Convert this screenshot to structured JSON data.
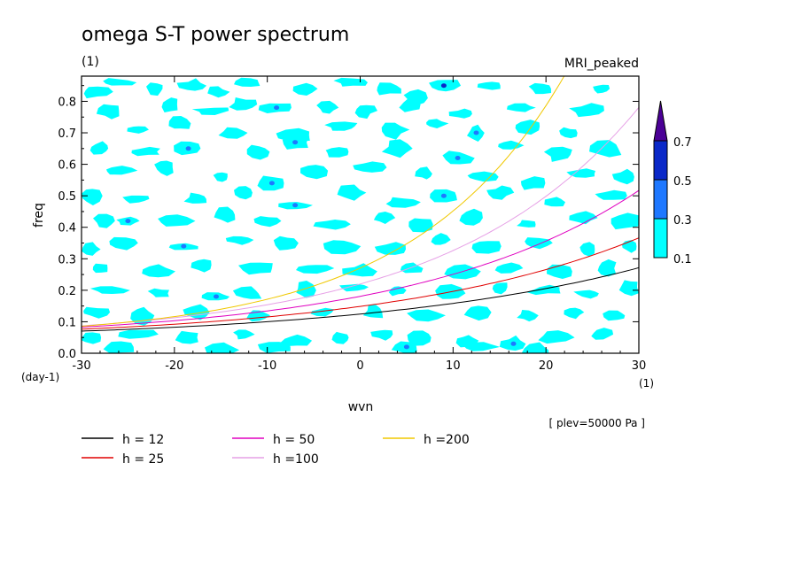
{
  "chart_data": {
    "type": "contour",
    "title": "omega S-T power spectrum",
    "subtitle_left": "(1)",
    "subtitle_right": "MRI_peaked",
    "xlabel": "wvn",
    "ylabel": "freq",
    "x_unit": "(1)",
    "y_unit": "(day-1)",
    "xlim": [
      -30,
      30
    ],
    "ylim": [
      0,
      0.88
    ],
    "x_ticks": [
      -30,
      -20,
      -10,
      0,
      10,
      20,
      30
    ],
    "x_tick_labels": [
      "-30",
      "-20",
      "-10",
      "0",
      "10",
      "20",
      "30"
    ],
    "y_ticks": [
      0,
      0.1,
      0.2,
      0.3,
      0.4,
      0.5,
      0.6,
      0.7,
      0.8
    ],
    "y_tick_labels": [
      "0.0",
      "0.1",
      "0.2",
      "0.3",
      "0.4",
      "0.5",
      "0.6",
      "0.7",
      "0.8"
    ],
    "annotation": "[ plev=50000 Pa ]",
    "colorbar": {
      "levels": [
        "0.1",
        "0.3",
        "0.5",
        "0.7"
      ],
      "colors": [
        "#00ffff",
        "#1e78ff",
        "#0a28c8",
        "#4b0096"
      ]
    },
    "curves": [
      {
        "name": "h = 12",
        "h": 12,
        "color": "#000000"
      },
      {
        "name": "h = 25",
        "h": 25,
        "color": "#e00000"
      },
      {
        "name": "h = 50",
        "h": 50,
        "color": "#e000c0"
      },
      {
        "name": "h =100",
        "h": 100,
        "color": "#e6a0e6"
      },
      {
        "name": "h =200",
        "h": 200,
        "color": "#f0c800"
      }
    ],
    "blobs": [
      [
        -28.5,
        0.83,
        0.1
      ],
      [
        -26,
        0.86,
        0.1
      ],
      [
        -22,
        0.84,
        0.1
      ],
      [
        -18,
        0.85,
        0.1
      ],
      [
        -15.5,
        0.83,
        0.1
      ],
      [
        -12,
        0.86,
        0.1
      ],
      [
        -6,
        0.84,
        0.1
      ],
      [
        -1,
        0.86,
        0.1
      ],
      [
        3,
        0.84,
        0.1
      ],
      [
        6,
        0.81,
        0.1
      ],
      [
        9,
        0.85,
        0.5
      ],
      [
        14,
        0.85,
        0.1
      ],
      [
        19.5,
        0.84,
        0.1
      ],
      [
        26,
        0.84,
        0.1
      ],
      [
        -27,
        0.77,
        0.1
      ],
      [
        -20.5,
        0.79,
        0.1
      ],
      [
        -16,
        0.77,
        0.1
      ],
      [
        -12.5,
        0.79,
        0.1
      ],
      [
        -9,
        0.78,
        0.3
      ],
      [
        -3.5,
        0.78,
        0.1
      ],
      [
        0.5,
        0.77,
        0.1
      ],
      [
        5.5,
        0.79,
        0.1
      ],
      [
        11,
        0.76,
        0.1
      ],
      [
        17.5,
        0.78,
        0.1
      ],
      [
        24.5,
        0.77,
        0.1
      ],
      [
        -24,
        0.71,
        0.1
      ],
      [
        -19.5,
        0.73,
        0.1
      ],
      [
        -13.5,
        0.7,
        0.1
      ],
      [
        -7,
        0.69,
        0.1
      ],
      [
        -2,
        0.72,
        0.1
      ],
      [
        3.5,
        0.71,
        0.1
      ],
      [
        8,
        0.73,
        0.1
      ],
      [
        12.5,
        0.7,
        0.3
      ],
      [
        18,
        0.72,
        0.1
      ],
      [
        22.5,
        0.7,
        0.1
      ],
      [
        -28,
        0.65,
        0.1
      ],
      [
        -23,
        0.64,
        0.1
      ],
      [
        -18.5,
        0.65,
        0.3
      ],
      [
        -11,
        0.64,
        0.1
      ],
      [
        -7,
        0.67,
        0.3
      ],
      [
        -2.5,
        0.64,
        0.1
      ],
      [
        4,
        0.65,
        0.1
      ],
      [
        10.5,
        0.62,
        0.3
      ],
      [
        16,
        0.66,
        0.1
      ],
      [
        21.5,
        0.63,
        0.1
      ],
      [
        26.5,
        0.65,
        0.1
      ],
      [
        -26,
        0.58,
        0.1
      ],
      [
        -21,
        0.59,
        0.1
      ],
      [
        -15,
        0.56,
        0.1
      ],
      [
        -9.5,
        0.54,
        0.3
      ],
      [
        -5,
        0.58,
        0.1
      ],
      [
        1,
        0.59,
        0.1
      ],
      [
        7,
        0.57,
        0.1
      ],
      [
        13,
        0.56,
        0.1
      ],
      [
        18.5,
        0.54,
        0.1
      ],
      [
        24,
        0.57,
        0.1
      ],
      [
        28.5,
        0.56,
        0.1
      ],
      [
        -29,
        0.5,
        0.1
      ],
      [
        -24,
        0.49,
        0.1
      ],
      [
        -17.5,
        0.49,
        0.1
      ],
      [
        -12.5,
        0.51,
        0.1
      ],
      [
        -7,
        0.47,
        0.3
      ],
      [
        -1,
        0.51,
        0.1
      ],
      [
        4.5,
        0.48,
        0.1
      ],
      [
        9,
        0.5,
        0.3
      ],
      [
        15,
        0.51,
        0.1
      ],
      [
        21,
        0.48,
        0.1
      ],
      [
        27,
        0.5,
        0.1
      ],
      [
        -27.5,
        0.42,
        0.1
      ],
      [
        -25,
        0.42,
        0.3
      ],
      [
        -20,
        0.42,
        0.1
      ],
      [
        -14.5,
        0.44,
        0.1
      ],
      [
        -10,
        0.42,
        0.1
      ],
      [
        -3,
        0.41,
        0.1
      ],
      [
        2.5,
        0.43,
        0.1
      ],
      [
        6.5,
        0.41,
        0.1
      ],
      [
        12,
        0.43,
        0.1
      ],
      [
        18,
        0.41,
        0.1
      ],
      [
        24,
        0.43,
        0.1
      ],
      [
        28.5,
        0.42,
        0.1
      ],
      [
        -29,
        0.33,
        0.1
      ],
      [
        -25.5,
        0.35,
        0.1
      ],
      [
        -19,
        0.34,
        0.3
      ],
      [
        -13,
        0.36,
        0.1
      ],
      [
        -8,
        0.35,
        0.1
      ],
      [
        -2,
        0.34,
        0.1
      ],
      [
        3.5,
        0.33,
        0.1
      ],
      [
        8.5,
        0.36,
        0.1
      ],
      [
        13.5,
        0.34,
        0.1
      ],
      [
        19,
        0.35,
        0.1
      ],
      [
        24.5,
        0.33,
        0.1
      ],
      [
        29,
        0.34,
        0.1
      ],
      [
        -28,
        0.27,
        0.1
      ],
      [
        -22,
        0.26,
        0.1
      ],
      [
        -17,
        0.28,
        0.1
      ],
      [
        -11,
        0.27,
        0.1
      ],
      [
        -5,
        0.27,
        0.1
      ],
      [
        0,
        0.26,
        0.1
      ],
      [
        5.5,
        0.27,
        0.1
      ],
      [
        11,
        0.26,
        0.1
      ],
      [
        16,
        0.27,
        0.1
      ],
      [
        21.5,
        0.26,
        0.1
      ],
      [
        26.5,
        0.27,
        0.1
      ],
      [
        -27,
        0.2,
        0.1
      ],
      [
        -21.5,
        0.19,
        0.1
      ],
      [
        -15.5,
        0.18,
        0.3
      ],
      [
        -12,
        0.19,
        0.1
      ],
      [
        -6,
        0.2,
        0.1
      ],
      [
        -0.5,
        0.21,
        0.1
      ],
      [
        4,
        0.2,
        0.1
      ],
      [
        9.5,
        0.19,
        0.1
      ],
      [
        15,
        0.21,
        0.1
      ],
      [
        20,
        0.2,
        0.1
      ],
      [
        24.5,
        0.19,
        0.1
      ],
      [
        29,
        0.21,
        0.1
      ],
      [
        -28.5,
        0.13,
        0.1
      ],
      [
        -23.5,
        0.12,
        0.1
      ],
      [
        -17.5,
        0.13,
        0.1
      ],
      [
        -11,
        0.12,
        0.1
      ],
      [
        -4,
        0.13,
        0.1
      ],
      [
        1.5,
        0.13,
        0.1
      ],
      [
        7,
        0.12,
        0.1
      ],
      [
        12.5,
        0.13,
        0.1
      ],
      [
        18,
        0.12,
        0.1
      ],
      [
        23,
        0.13,
        0.1
      ],
      [
        27.5,
        0.12,
        0.1
      ],
      [
        -29,
        0.05,
        0.1
      ],
      [
        -24,
        0.06,
        0.1
      ],
      [
        -18.5,
        0.05,
        0.1
      ],
      [
        -12.5,
        0.06,
        0.1
      ],
      [
        -7,
        0.04,
        0.1
      ],
      [
        -2,
        0.05,
        0.1
      ],
      [
        2.5,
        0.06,
        0.1
      ],
      [
        6.5,
        0.05,
        0.1
      ],
      [
        11.5,
        0.04,
        0.1
      ],
      [
        16.5,
        0.03,
        0.3
      ],
      [
        21,
        0.05,
        0.1
      ],
      [
        26,
        0.06,
        0.1
      ],
      [
        -26,
        0.02,
        0.1
      ],
      [
        -15,
        0.01,
        0.1
      ],
      [
        -9,
        0.02,
        0.1
      ],
      [
        5,
        0.02,
        0.3
      ],
      [
        13,
        0.02,
        0.1
      ],
      [
        19,
        0.01,
        0.1
      ]
    ]
  }
}
